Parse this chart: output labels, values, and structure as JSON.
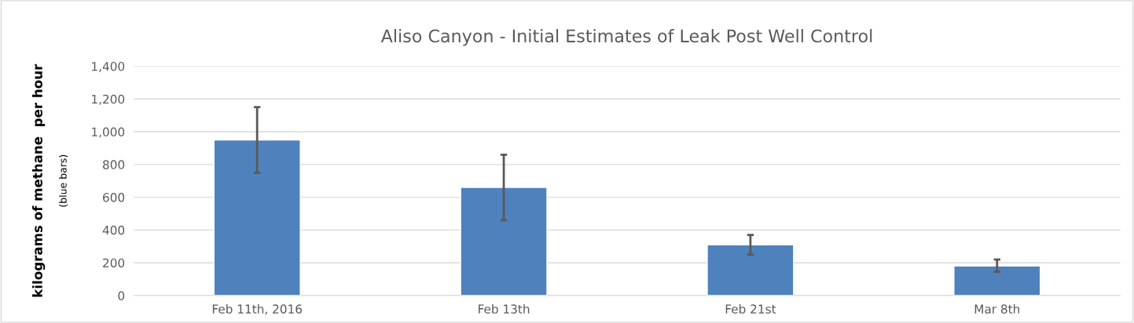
{
  "chart_data": {
    "type": "bar",
    "title": "Aliso Canyon - Initial Estimates of Leak Post Well Control",
    "ylabel": "kilograms of methane  per hour",
    "annotations": [
      "(blue bars)"
    ],
    "categories": [
      "Feb 11th, 2016",
      "Feb 13th",
      "Feb 21st",
      "Mar 8th"
    ],
    "values": [
      950,
      660,
      310,
      180
    ],
    "errors": [
      [
        750,
        1150
      ],
      [
        460,
        860
      ],
      [
        250,
        370
      ],
      [
        145,
        220
      ]
    ],
    "color": "#4f81bd",
    "ylim": [
      0,
      1400
    ],
    "yticks": [
      {
        "value": 0,
        "label": "0"
      },
      {
        "value": 200,
        "label": "200"
      },
      {
        "value": 400,
        "label": "400"
      },
      {
        "value": 600,
        "label": "600"
      },
      {
        "value": 800,
        "label": "800"
      },
      {
        "value": 1000,
        "label": "1,000"
      },
      {
        "value": 1200,
        "label": "1,200"
      },
      {
        "value": 1400,
        "label": "1,400"
      }
    ],
    "grid": "y"
  }
}
